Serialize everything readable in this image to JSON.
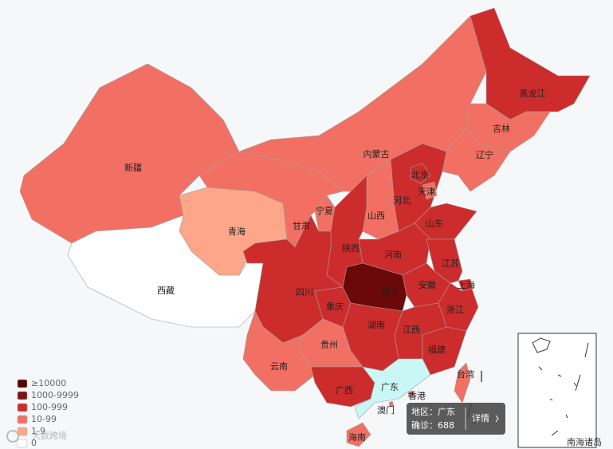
{
  "map": {
    "regions": [
      {
        "name": "新疆",
        "color": "#f27063"
      },
      {
        "name": "西藏",
        "color": "#ffffff"
      },
      {
        "name": "青海",
        "color": "#fda68a"
      },
      {
        "name": "甘肃",
        "color": "#f27063"
      },
      {
        "name": "内蒙古",
        "color": "#f27063"
      },
      {
        "name": "黑龙江",
        "color": "#cd2c2c"
      },
      {
        "name": "吉林",
        "color": "#f27063"
      },
      {
        "name": "辽宁",
        "color": "#f27063"
      },
      {
        "name": "河北",
        "color": "#cd2c2c"
      },
      {
        "name": "北京",
        "color": "#cd2c2c"
      },
      {
        "name": "天津",
        "color": "#f27063"
      },
      {
        "name": "山西",
        "color": "#f27063"
      },
      {
        "name": "宁夏",
        "color": "#f27063"
      },
      {
        "name": "山东",
        "color": "#cd2c2c"
      },
      {
        "name": "陕西",
        "color": "#cd2c2c"
      },
      {
        "name": "河南",
        "color": "#cd2c2c"
      },
      {
        "name": "江苏",
        "color": "#cd2c2c"
      },
      {
        "name": "安徽",
        "color": "#cd2c2c"
      },
      {
        "name": "上海",
        "color": "#cd2c2c"
      },
      {
        "name": "浙江",
        "color": "#cd2c2c"
      },
      {
        "name": "湖北",
        "color": "#6b0808"
      },
      {
        "name": "四川",
        "color": "#cd2c2c"
      },
      {
        "name": "重庆",
        "color": "#cd2c2c"
      },
      {
        "name": "湖南",
        "color": "#cd2c2c"
      },
      {
        "name": "江西",
        "color": "#cd2c2c"
      },
      {
        "name": "贵州",
        "color": "#f27063"
      },
      {
        "name": "福建",
        "color": "#cd2c2c"
      },
      {
        "name": "云南",
        "color": "#f27063"
      },
      {
        "name": "台湾",
        "color": "#f27063"
      },
      {
        "name": "广西",
        "color": "#cd2c2c"
      },
      {
        "name": "广东",
        "color": "#c9f7f6"
      },
      {
        "name": "香港",
        "color": "#f27063"
      },
      {
        "name": "澳门",
        "color": "#f27063"
      },
      {
        "name": "海南",
        "color": "#f27063"
      }
    ],
    "legend": [
      {
        "label": "≥10000",
        "color": "#5a0000"
      },
      {
        "label": "1000-9999",
        "color": "#7e1414"
      },
      {
        "label": "100-999",
        "color": "#cd2c2c"
      },
      {
        "label": "10-99",
        "color": "#f27063"
      },
      {
        "label": "1-9",
        "color": "#fda68a"
      },
      {
        "label": "0",
        "color": "#ffffff"
      }
    ],
    "tooltip": {
      "region": "地区：广东",
      "confirmed": "确诊：688",
      "button": "详情"
    },
    "inset_label": "南海诸岛",
    "watermark": "大数跨境"
  }
}
